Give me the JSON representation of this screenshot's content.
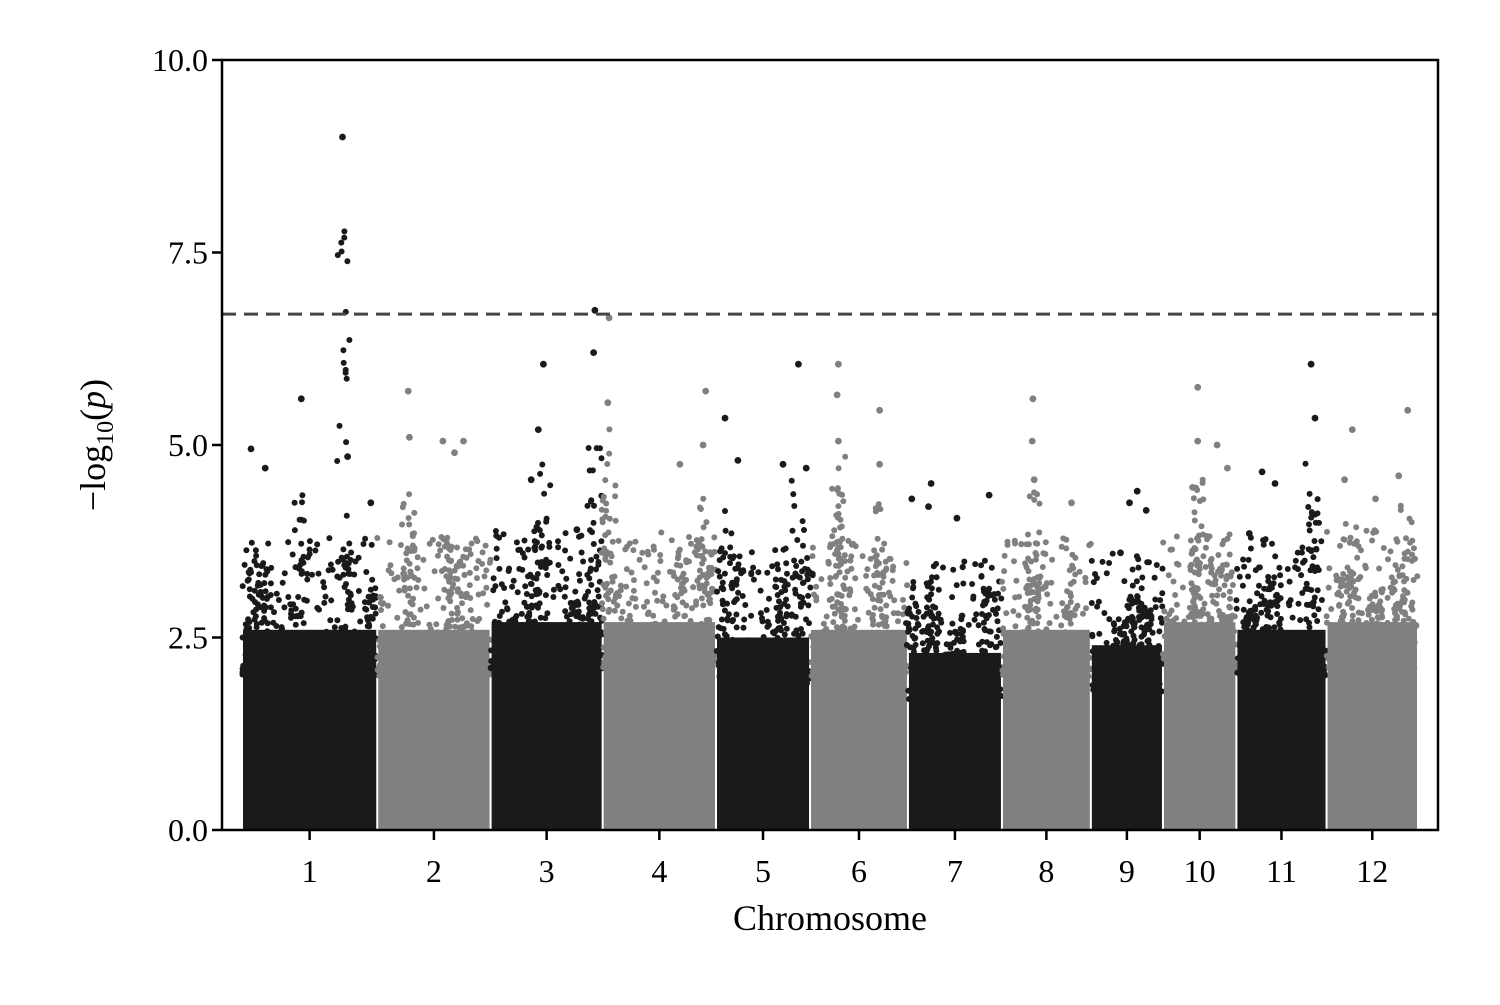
{
  "chart_data": {
    "type": "scatter",
    "subtype": "manhattan",
    "title": "",
    "xlabel": "Chromosome",
    "ylabel": "-log10(p)",
    "ylim": [
      0,
      10
    ],
    "yticks": [
      "0.0",
      "2.5",
      "5.0",
      "7.5",
      "10.0"
    ],
    "threshold": 6.7,
    "threshold_style": "dashed",
    "grid": false,
    "legend": "none",
    "colors": {
      "odd": "#1a1a1a",
      "even": "#808080",
      "threshold": "#444444",
      "axis": "#000000"
    },
    "chromosomes": [
      {
        "label": "1",
        "start": 0,
        "end": 1050,
        "base": 2.6,
        "peaks": [
          [
            780,
            9.0
          ],
          [
            460,
            5.6
          ],
          [
            70,
            4.95
          ],
          [
            820,
            4.85
          ],
          [
            180,
            4.7
          ],
          [
            1000,
            4.25
          ]
        ]
      },
      {
        "label": "2",
        "start": 1050,
        "end": 1930,
        "base": 2.6,
        "peaks": [
          [
            1290,
            5.7
          ],
          [
            1560,
            5.05
          ],
          [
            1300,
            5.1
          ],
          [
            1720,
            5.05
          ],
          [
            1650,
            4.9
          ]
        ]
      },
      {
        "label": "3",
        "start": 1930,
        "end": 2800,
        "base": 2.7,
        "peaks": [
          [
            2740,
            6.75
          ],
          [
            2730,
            6.2
          ],
          [
            2340,
            6.05
          ],
          [
            2300,
            5.2
          ],
          [
            2245,
            4.55
          ],
          [
            2600,
            3.9
          ]
        ]
      },
      {
        "label": "4",
        "start": 2800,
        "end": 3680,
        "base": 2.7,
        "peaks": [
          [
            2850,
            6.65
          ],
          [
            2840,
            5.55
          ],
          [
            3600,
            5.7
          ],
          [
            3580,
            5.0
          ],
          [
            3400,
            4.75
          ]
        ]
      },
      {
        "label": "5",
        "start": 3680,
        "end": 4410,
        "base": 2.5,
        "peaks": [
          [
            4320,
            6.05
          ],
          [
            3750,
            5.35
          ],
          [
            4200,
            4.75
          ],
          [
            4380,
            4.7
          ],
          [
            3850,
            4.8
          ]
        ]
      },
      {
        "label": "6",
        "start": 4410,
        "end": 5170,
        "base": 2.6,
        "peaks": [
          [
            4630,
            6.05
          ],
          [
            4620,
            5.65
          ],
          [
            4950,
            5.45
          ],
          [
            4630,
            5.05
          ],
          [
            4950,
            4.75
          ]
        ]
      },
      {
        "label": "7",
        "start": 5170,
        "end": 5900,
        "base": 2.3,
        "peaks": [
          [
            5350,
            4.5
          ],
          [
            5550,
            4.05
          ],
          [
            5800,
            4.35
          ],
          [
            5200,
            4.3
          ],
          [
            5330,
            4.2
          ]
        ]
      },
      {
        "label": "8",
        "start": 5900,
        "end": 6590,
        "base": 2.6,
        "peaks": [
          [
            6140,
            5.6
          ],
          [
            6135,
            5.05
          ],
          [
            6150,
            4.55
          ],
          [
            6440,
            4.25
          ]
        ]
      },
      {
        "label": "9",
        "start": 6590,
        "end": 7150,
        "base": 2.4,
        "peaks": [
          [
            6950,
            4.4
          ],
          [
            6890,
            4.25
          ],
          [
            7020,
            4.15
          ],
          [
            6820,
            3.6
          ]
        ]
      },
      {
        "label": "10",
        "start": 7150,
        "end": 7720,
        "base": 2.7,
        "peaks": [
          [
            7420,
            5.75
          ],
          [
            7420,
            5.05
          ],
          [
            7570,
            5.0
          ],
          [
            7650,
            4.7
          ],
          [
            7380,
            4.45
          ]
        ]
      },
      {
        "label": "11",
        "start": 7720,
        "end": 8420,
        "base": 2.6,
        "peaks": [
          [
            8300,
            6.05
          ],
          [
            8330,
            5.35
          ],
          [
            7920,
            4.65
          ],
          [
            8020,
            4.5
          ],
          [
            7820,
            3.85
          ]
        ]
      },
      {
        "label": "12",
        "start": 8420,
        "end": 9130,
        "base": 2.7,
        "peaks": [
          [
            9050,
            5.45
          ],
          [
            8620,
            5.2
          ],
          [
            8560,
            4.55
          ],
          [
            8980,
            4.6
          ],
          [
            8800,
            4.3
          ]
        ]
      }
    ]
  }
}
